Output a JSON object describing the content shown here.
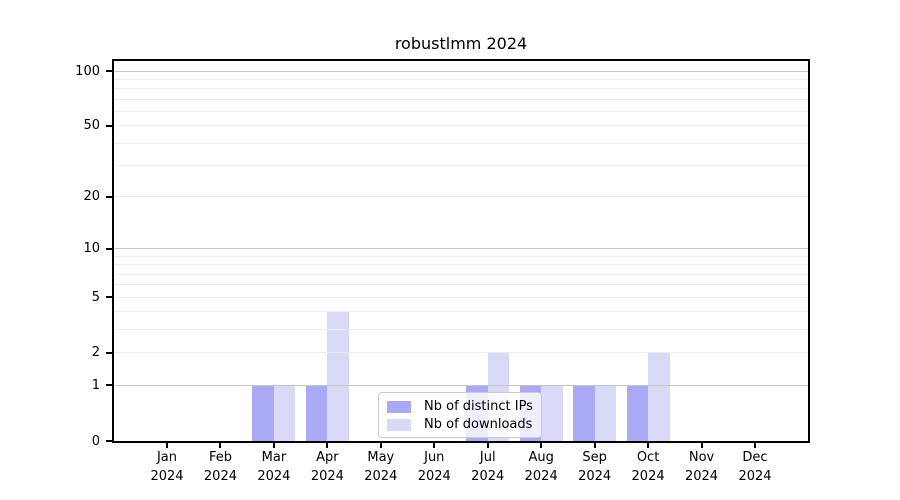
{
  "title": "robustlmm 2024",
  "legend": {
    "items": [
      {
        "label": "Nb of distinct IPs",
        "color": "#a9a9f5"
      },
      {
        "label": "Nb of downloads",
        "color": "#d9d9f8"
      }
    ]
  },
  "chart_data": {
    "type": "bar",
    "title": "robustlmm 2024",
    "categories": [
      "Jan",
      "Feb",
      "Mar",
      "Apr",
      "May",
      "Jun",
      "Jul",
      "Aug",
      "Sep",
      "Oct",
      "Nov",
      "Dec"
    ],
    "year_label": "2024",
    "series": [
      {
        "name": "Nb of distinct IPs",
        "color": "#a9a9f5",
        "values": [
          0,
          0,
          1,
          1,
          0,
          0,
          1,
          1,
          1,
          1,
          0,
          0
        ]
      },
      {
        "name": "Nb of downloads",
        "color": "#d9d9f8",
        "values": [
          0,
          0,
          1,
          4,
          0,
          0,
          2,
          1,
          1,
          2,
          0,
          0
        ]
      }
    ],
    "y_axis": {
      "scale": "log1p",
      "tick_values": [
        0,
        1,
        2,
        5,
        10,
        20,
        50,
        100
      ],
      "major_grid_values": [
        1,
        10,
        100
      ],
      "minor_grid_values": [
        2,
        3,
        4,
        5,
        6,
        7,
        8,
        9,
        20,
        30,
        40,
        50,
        60,
        70,
        80,
        90
      ],
      "ylim": [
        0,
        117
      ]
    },
    "grid": true,
    "legend_position": "lower center inside"
  },
  "colors": {
    "grid_major": "#c6c6c6",
    "grid_minor": "#ececec",
    "axis": "#000000",
    "background": "#ffffff"
  }
}
